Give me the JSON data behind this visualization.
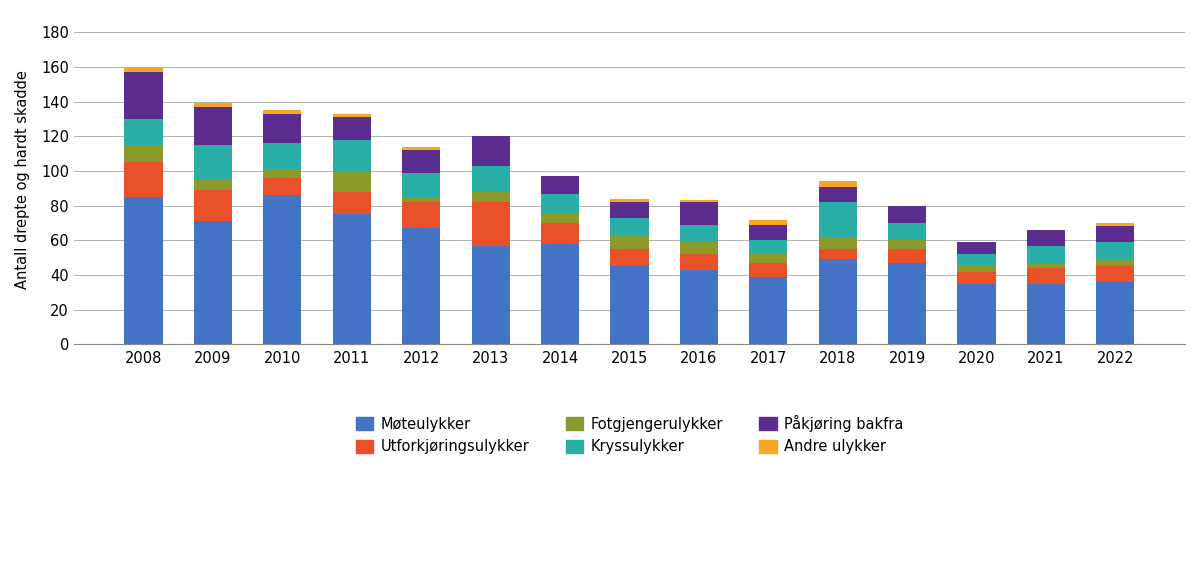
{
  "years": [
    2008,
    2009,
    2010,
    2011,
    2012,
    2013,
    2014,
    2015,
    2016,
    2017,
    2018,
    2019,
    2020,
    2021,
    2022
  ],
  "stack_order": [
    "Møteulykker",
    "Utforkjøringsulykker",
    "Fotgjengerulykker",
    "Kryssulykker",
    "Påkjøring bakfra",
    "Andre ulykker"
  ],
  "series": {
    "Møteulykker": [
      85,
      71,
      86,
      75,
      67,
      57,
      58,
      45,
      43,
      39,
      49,
      47,
      35,
      35,
      36
    ],
    "Utforkjøringsulykker": [
      20,
      18,
      10,
      13,
      15,
      25,
      12,
      10,
      9,
      8,
      6,
      8,
      7,
      9,
      9
    ],
    "Fotgjengerulykker": [
      10,
      6,
      5,
      12,
      3,
      6,
      5,
      8,
      7,
      5,
      7,
      5,
      4,
      3,
      4
    ],
    "Kryssulykker": [
      15,
      20,
      15,
      18,
      14,
      15,
      12,
      10,
      10,
      8,
      20,
      10,
      6,
      10,
      10
    ],
    "Påkjøring bakfra": [
      27,
      22,
      17,
      13,
      13,
      17,
      10,
      9,
      13,
      9,
      9,
      10,
      7,
      9,
      9
    ],
    "Andre ulykker": [
      3,
      2,
      2,
      2,
      2,
      0,
      0,
      2,
      1,
      3,
      3,
      0,
      0,
      0,
      2
    ]
  },
  "colors": {
    "Møteulykker": "#4472C4",
    "Utforkjøringsulykker": "#E8512A",
    "Fotgjengerulykker": "#8B9A2A",
    "Kryssulykker": "#2AAFA8",
    "Påkjøring bakfra": "#5B2D8E",
    "Andre ulykker": "#F5A623"
  },
  "legend_row1": [
    "Møteulykker",
    "Utforkjøringsulykker",
    "Fotgjengerulykker"
  ],
  "legend_row2": [
    "Kryssulykker",
    "Påkjøring bakfra",
    "Andre ulykker"
  ],
  "ylabel": "Antall drepte og hardt skadde",
  "ylim": [
    0,
    190
  ],
  "yticks": [
    0,
    20,
    40,
    60,
    80,
    100,
    120,
    140,
    160,
    180
  ],
  "background_color": "#ffffff",
  "grid_color": "#b0b0b0"
}
